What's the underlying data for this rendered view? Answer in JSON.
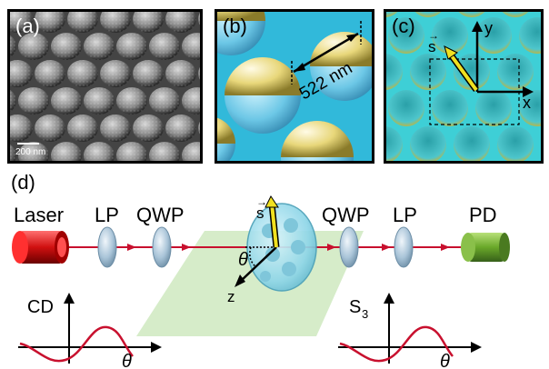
{
  "figure": {
    "panel_a": {
      "label": "(a)",
      "scale_bar": "200 nm"
    },
    "panel_b": {
      "label": "(b)",
      "period": "522 nm"
    },
    "panel_c": {
      "label": "(c)",
      "vector_s": "s",
      "axis_x": "x",
      "axis_y": "y"
    },
    "panel_d": {
      "label": "(d)",
      "laser": "Laser",
      "lp_left": "LP",
      "qwp_left": "QWP",
      "qwp_right": "QWP",
      "lp_right": "LP",
      "pd": "PD",
      "vector_s": "s",
      "theta": "θ",
      "axis_z": "z",
      "cd_label": "CD",
      "s3_label": "S",
      "s3_sub": "3",
      "theta_axis_left": "θ",
      "theta_axis_right": "θ"
    }
  },
  "colors": {
    "beam": "#c8102e",
    "gold": "#e8d77a",
    "cyan": "#5ad0d8",
    "lens": "#a9c4d8",
    "pd": "#6aa82a",
    "plane": "#cfe9c0"
  }
}
